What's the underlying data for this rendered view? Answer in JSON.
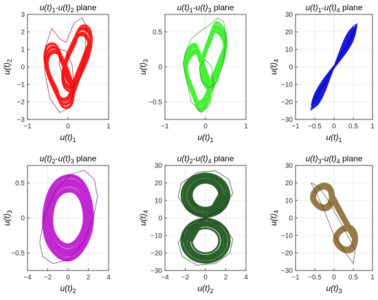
{
  "figure": {
    "grid": true,
    "layout": "2x3"
  },
  "chart_data": [
    {
      "type": "line",
      "title": "u(t)1-u(t)2 plane",
      "title_parts": {
        "v1": "u(t)",
        "s1": "1",
        "v2": "u(t)",
        "s2": "2",
        "suffix": "plane"
      },
      "xlabel": {
        "var": "u(t)",
        "sub": "1"
      },
      "ylabel": {
        "var": "u(t)",
        "sub": "2"
      },
      "xlim": [
        -1,
        1
      ],
      "ylim": [
        -3,
        3
      ],
      "xticks": [
        -1,
        0,
        1
      ],
      "yticks": [
        -3,
        -2,
        -1,
        0,
        1,
        2,
        3
      ],
      "color": "#ff0000",
      "shape": "butterfly",
      "x": [
        -0.58,
        -0.45,
        -0.2,
        0.05,
        0.15,
        0.1,
        -0.05,
        -0.2,
        -0.22,
        -0.1,
        0.1,
        0.3,
        0.42,
        0.45,
        0.35,
        0.15,
        -0.05,
        -0.2,
        -0.4,
        -0.55,
        -0.58
      ],
      "y": [
        -0.2,
        -1.8,
        -2.6,
        -2.3,
        -1.2,
        0.1,
        0.9,
        1.0,
        0.2,
        -0.8,
        -1.2,
        -0.6,
        0.8,
        2.3,
        2.8,
        2.5,
        1.4,
        1.6,
        2.2,
        1.2,
        -0.2
      ]
    },
    {
      "type": "line",
      "title": "u(t)1-u(t)3 plane",
      "title_parts": {
        "v1": "u(t)",
        "s1": "1",
        "v2": "u(t)",
        "s2": "3",
        "suffix": "plane"
      },
      "xlabel": {
        "var": "u(t)",
        "sub": "1"
      },
      "ylabel": {
        "var": "u(t)",
        "sub": "3"
      },
      "xlim": [
        -1,
        1
      ],
      "ylim": [
        -0.75,
        0.75
      ],
      "xticks": [
        -1,
        0,
        1
      ],
      "yticks": [
        -0.5,
        0,
        0.5
      ],
      "color": "#33ee22",
      "shape": "butterfly",
      "x": [
        -0.5,
        -0.35,
        -0.1,
        0.1,
        0.2,
        0.15,
        0.0,
        -0.15,
        -0.1,
        0.1,
        0.3,
        0.45,
        0.5,
        0.45,
        0.3,
        0.1,
        -0.15,
        -0.35,
        -0.5,
        -0.55,
        -0.5
      ],
      "y": [
        -0.1,
        -0.5,
        -0.65,
        -0.55,
        -0.3,
        0.0,
        0.1,
        0.0,
        -0.2,
        -0.3,
        -0.2,
        0.1,
        0.45,
        0.65,
        0.7,
        0.6,
        0.5,
        0.4,
        0.2,
        0.05,
        -0.1
      ]
    },
    {
      "type": "line",
      "title": "u(t)1-u(t)4 plane",
      "title_parts": {
        "v1": "u(t)",
        "s1": "1",
        "v2": "u(t)",
        "s2": "4",
        "suffix": "plane"
      },
      "xlabel": {
        "var": "u(t)",
        "sub": "1"
      },
      "ylabel": {
        "var": "u(t)",
        "sub": "4"
      },
      "xlim": [
        -1,
        1
      ],
      "ylim": [
        -30,
        30
      ],
      "xticks": [
        -1,
        -0.5,
        0,
        0.5,
        1
      ],
      "yticks": [
        -30,
        -20,
        -10,
        0,
        10,
        20,
        30
      ],
      "color": "#0000dd",
      "shape": "diagonal",
      "x": [
        -0.6,
        -0.5,
        -0.35,
        -0.2,
        -0.05,
        0.1,
        0.25,
        0.4,
        0.5,
        0.58,
        0.55,
        0.45,
        0.3,
        0.15,
        0.0,
        -0.15,
        -0.3,
        -0.45,
        -0.55,
        -0.6
      ],
      "y": [
        -22,
        -20,
        -14,
        -8,
        -2,
        4,
        9,
        15,
        20,
        23,
        20,
        16,
        11,
        6,
        0,
        -6,
        -11,
        -16,
        -19,
        -22
      ]
    },
    {
      "type": "line",
      "title": "u(t)2-u(t)3 plane",
      "title_parts": {
        "v1": "u(t)",
        "s1": "2",
        "v2": "u(t)",
        "s2": "3",
        "suffix": "plane"
      },
      "xlabel": {
        "var": "u(t)",
        "sub": "2"
      },
      "ylabel": {
        "var": "u(t)",
        "sub": "3"
      },
      "xlim": [
        -4,
        4
      ],
      "ylim": [
        -0.75,
        0.75
      ],
      "xticks": [
        -4,
        -2,
        0,
        2,
        4
      ],
      "yticks": [
        -0.5,
        0,
        0.5
      ],
      "color": "#bb11cc",
      "shape": "ellipse",
      "x": [
        -2.8,
        -2.5,
        -1.5,
        0.0,
        1.5,
        2.5,
        2.9,
        2.6,
        1.6,
        0.2,
        -1.2,
        -2.3,
        -2.8
      ],
      "y": [
        -0.35,
        -0.55,
        -0.65,
        -0.6,
        -0.35,
        0.0,
        0.3,
        0.55,
        0.68,
        0.62,
        0.4,
        0.05,
        -0.35
      ]
    },
    {
      "type": "line",
      "title": "u(t)2-u(t)4 plane",
      "title_parts": {
        "v1": "u(t)",
        "s1": "2",
        "v2": "u(t)",
        "s2": "4",
        "suffix": "plane"
      },
      "xlabel": {
        "var": "u(t)",
        "sub": "2"
      },
      "ylabel": {
        "var": "u(t)",
        "sub": "4"
      },
      "xlim": [
        -4,
        4
      ],
      "ylim": [
        -30,
        30
      ],
      "xticks": [
        -4,
        -2,
        0,
        2,
        4
      ],
      "yticks": [
        -30,
        -20,
        -10,
        0,
        10,
        20,
        30
      ],
      "color": "#134d13",
      "shape": "figure8",
      "x": [
        0.0,
        1.8,
        2.7,
        2.3,
        1.0,
        -0.8,
        -2.4,
        -2.7,
        -1.8,
        0.0,
        1.8,
        2.7,
        2.4,
        1.0,
        -0.8,
        -2.3,
        -2.7,
        -1.8,
        0.0
      ],
      "y": [
        0.0,
        6,
        14,
        22,
        27,
        26,
        20,
        12,
        5,
        0,
        -5,
        -12,
        -20,
        -26,
        -27,
        -22,
        -14,
        -6,
        0.0
      ]
    },
    {
      "type": "line",
      "title": "u(t)3-u(t)4 plane",
      "title_parts": {
        "v1": "u(t)",
        "s1": "3",
        "v2": "u(t)",
        "s2": "4",
        "suffix": "plane"
      },
      "xlabel": {
        "var": "u(t)",
        "sub": "3"
      },
      "ylabel": {
        "var": "u(t)",
        "sub": "4"
      },
      "xlim": [
        -1,
        1
      ],
      "ylim": [
        -30,
        30
      ],
      "xticks": [
        -1,
        -0.5,
        0,
        0.5,
        1
      ],
      "yticks": [
        -30,
        -20,
        -10,
        0,
        10,
        20,
        30
      ],
      "color": "#8b6a33",
      "shape": "bowtie",
      "x": [
        -0.6,
        -0.4,
        -0.15,
        0.05,
        0.3,
        0.55,
        0.5,
        0.3,
        0.0,
        -0.25,
        -0.45,
        -0.6
      ],
      "y": [
        20,
        18,
        10,
        2,
        -8,
        -18,
        -26,
        -20,
        -10,
        4,
        14,
        20
      ]
    }
  ]
}
